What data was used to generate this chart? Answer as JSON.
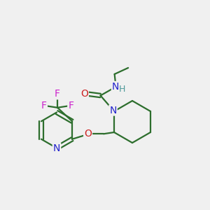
{
  "bg_color": "#f0f0f0",
  "bond_color": "#2d6e2d",
  "N_color": "#2222cc",
  "O_color": "#cc2222",
  "F_color": "#cc22cc",
  "H_color": "#4d9999",
  "line_width": 1.6,
  "font_size_atom": 10,
  "fig_size": [
    3.0,
    3.0
  ],
  "dpi": 100,
  "xlim": [
    0,
    10
  ],
  "ylim": [
    0,
    10
  ]
}
